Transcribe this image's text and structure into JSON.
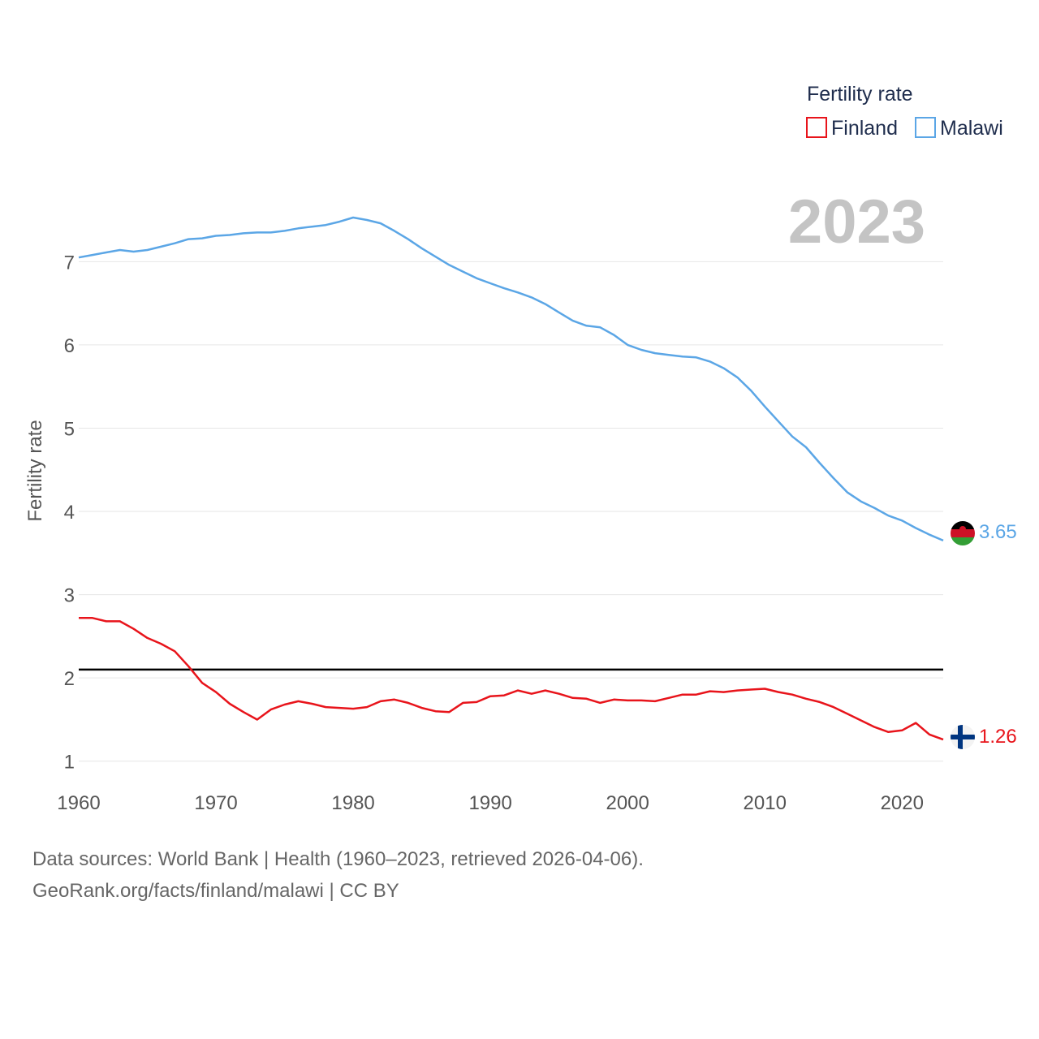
{
  "chart_data": {
    "type": "line",
    "title": "",
    "year_label": "2023",
    "xlabel": "",
    "ylabel": "Fertility rate",
    "xlim": [
      1960,
      2023
    ],
    "ylim": [
      0.9,
      7.9
    ],
    "x_ticks": [
      1960,
      1970,
      1980,
      1990,
      2000,
      2010,
      2020
    ],
    "y_ticks": [
      1,
      2,
      3,
      4,
      5,
      6,
      7
    ],
    "grid": true,
    "legend": {
      "title": "Fertility rate",
      "position": "top-right"
    },
    "reference_line": {
      "value": 2.1,
      "color": "#000000"
    },
    "x": [
      1960,
      1961,
      1962,
      1963,
      1964,
      1965,
      1966,
      1967,
      1968,
      1969,
      1970,
      1971,
      1972,
      1973,
      1974,
      1975,
      1976,
      1977,
      1978,
      1979,
      1980,
      1981,
      1982,
      1983,
      1984,
      1985,
      1986,
      1987,
      1988,
      1989,
      1990,
      1991,
      1992,
      1993,
      1994,
      1995,
      1996,
      1997,
      1998,
      1999,
      2000,
      2001,
      2002,
      2003,
      2004,
      2005,
      2006,
      2007,
      2008,
      2009,
      2010,
      2011,
      2012,
      2013,
      2014,
      2015,
      2016,
      2017,
      2018,
      2019,
      2020,
      2021,
      2022,
      2023
    ],
    "series": [
      {
        "name": "Finland",
        "color": "#e8141b",
        "end_label": "1.26",
        "values": [
          2.72,
          2.72,
          2.68,
          2.68,
          2.59,
          2.48,
          2.41,
          2.32,
          2.14,
          1.94,
          1.83,
          1.69,
          1.59,
          1.5,
          1.62,
          1.68,
          1.72,
          1.69,
          1.65,
          1.64,
          1.63,
          1.65,
          1.72,
          1.74,
          1.7,
          1.64,
          1.6,
          1.59,
          1.7,
          1.71,
          1.78,
          1.79,
          1.85,
          1.81,
          1.85,
          1.81,
          1.76,
          1.75,
          1.7,
          1.74,
          1.73,
          1.73,
          1.72,
          1.76,
          1.8,
          1.8,
          1.84,
          1.83,
          1.85,
          1.86,
          1.87,
          1.83,
          1.8,
          1.75,
          1.71,
          1.65,
          1.57,
          1.49,
          1.41,
          1.35,
          1.37,
          1.46,
          1.32,
          1.26
        ]
      },
      {
        "name": "Malawi",
        "color": "#5ba6e6",
        "end_label": "3.65",
        "values": [
          7.05,
          7.08,
          7.11,
          7.14,
          7.12,
          7.14,
          7.18,
          7.22,
          7.27,
          7.28,
          7.31,
          7.32,
          7.34,
          7.35,
          7.35,
          7.37,
          7.4,
          7.42,
          7.44,
          7.48,
          7.53,
          7.5,
          7.46,
          7.37,
          7.27,
          7.16,
          7.06,
          6.96,
          6.88,
          6.8,
          6.74,
          6.68,
          6.63,
          6.57,
          6.49,
          6.39,
          6.29,
          6.23,
          6.21,
          6.12,
          6.0,
          5.94,
          5.9,
          5.88,
          5.86,
          5.85,
          5.8,
          5.72,
          5.61,
          5.45,
          5.26,
          5.08,
          4.9,
          4.77,
          4.58,
          4.4,
          4.23,
          4.12,
          4.04,
          3.95,
          3.89,
          3.8,
          3.72,
          3.65
        ]
      }
    ]
  },
  "footer": {
    "line1": "Data sources: World Bank | Health (1960–2023, retrieved 2026-04-06).",
    "line2": "GeoRank.org/facts/finland/malawi | CC BY"
  }
}
